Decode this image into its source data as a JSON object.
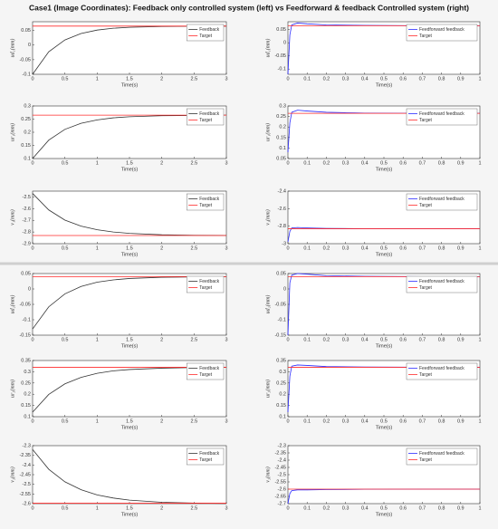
{
  "title": "Case1 (Image Coordinates): Feedback only controlled system (left) vs Feedforward & feedback Controlled system (right)",
  "chart_data": [
    {
      "type": "line",
      "ylabel": "ud₁(mm)",
      "xlabel": "Time(s)",
      "x": [
        0,
        0.25,
        0.5,
        0.75,
        1,
        1.25,
        1.5,
        2,
        2.5,
        3
      ],
      "xlim": [
        0,
        3
      ],
      "xticks": [
        0,
        0.5,
        1,
        1.5,
        2,
        2.5,
        3
      ],
      "ylim": [
        -0.1,
        0.08
      ],
      "yticks": [
        -0.1,
        -0.05,
        0,
        0.05
      ],
      "legend": "upper right",
      "series": [
        {
          "name": "Feedback",
          "color": "#333333",
          "values": [
            -0.1,
            -0.023,
            0.0177,
            0.0397,
            0.0515,
            0.0578,
            0.0611,
            0.0639,
            0.0647,
            0.065
          ]
        },
        {
          "name": "Target",
          "color": "#ff2a2a",
          "values": [
            0.065,
            0.065,
            0.065,
            0.065,
            0.065,
            0.065,
            0.065,
            0.065,
            0.065,
            0.065
          ]
        }
      ]
    },
    {
      "type": "line",
      "ylabel": "ud₁(mm)",
      "xlabel": "Time(s)",
      "x": [
        0,
        0.01,
        0.02,
        0.05,
        0.1,
        0.2,
        0.4,
        0.7,
        1
      ],
      "xlim": [
        0,
        1
      ],
      "xticks": [
        0,
        0.1,
        0.2,
        0.3,
        0.4,
        0.5,
        0.6,
        0.7,
        0.8,
        0.9,
        1
      ],
      "ylim": [
        -0.12,
        0.08
      ],
      "yticks": [
        -0.1,
        -0.05,
        0,
        0.05
      ],
      "legend": "upper right",
      "series": [
        {
          "name": "Feedforward feedback",
          "color": "#2b2bff",
          "values": [
            -0.12,
            0.03,
            0.068,
            0.075,
            0.072,
            0.068,
            0.066,
            0.065,
            0.065
          ]
        },
        {
          "name": "Target",
          "color": "#ff2a2a",
          "values": [
            0.065,
            0.065,
            0.065,
            0.065,
            0.065,
            0.065,
            0.065,
            0.065,
            0.065
          ]
        }
      ]
    },
    {
      "type": "line",
      "ylabel": "ur₁(mm)",
      "xlabel": "Time(s)",
      "x": [
        0,
        0.25,
        0.5,
        0.75,
        1,
        1.25,
        1.5,
        2,
        2.5,
        3
      ],
      "xlim": [
        0,
        3
      ],
      "xticks": [
        0,
        0.5,
        1,
        1.5,
        2,
        2.5,
        3
      ],
      "ylim": [
        0.1,
        0.3
      ],
      "yticks": [
        0.1,
        0.15,
        0.2,
        0.25,
        0.3
      ],
      "legend": "upper right",
      "series": [
        {
          "name": "Feedback",
          "color": "#333333",
          "values": [
            0.1,
            0.17,
            0.211,
            0.234,
            0.247,
            0.255,
            0.259,
            0.263,
            0.264,
            0.265
          ]
        },
        {
          "name": "Target",
          "color": "#ff2a2a",
          "values": [
            0.265,
            0.265,
            0.265,
            0.265,
            0.265,
            0.265,
            0.265,
            0.265,
            0.265,
            0.265
          ]
        }
      ]
    },
    {
      "type": "line",
      "ylabel": "ur₁(mm)",
      "xlabel": "Time(s)",
      "x": [
        0,
        0.01,
        0.02,
        0.05,
        0.1,
        0.2,
        0.4,
        0.7,
        1
      ],
      "xlim": [
        0,
        1
      ],
      "xticks": [
        0,
        0.1,
        0.2,
        0.3,
        0.4,
        0.5,
        0.6,
        0.7,
        0.8,
        0.9,
        1
      ],
      "ylim": [
        0.05,
        0.3
      ],
      "yticks": [
        0.05,
        0.1,
        0.15,
        0.2,
        0.25,
        0.3
      ],
      "legend": "upper right",
      "series": [
        {
          "name": "Feedforward feedback",
          "color": "#2b2bff",
          "values": [
            0.08,
            0.22,
            0.27,
            0.28,
            0.276,
            0.27,
            0.266,
            0.265,
            0.265
          ]
        },
        {
          "name": "Target",
          "color": "#ff2a2a",
          "values": [
            0.265,
            0.265,
            0.265,
            0.265,
            0.265,
            0.265,
            0.265,
            0.265,
            0.265
          ]
        }
      ]
    },
    {
      "type": "line",
      "ylabel": "v₁(mm)",
      "xlabel": "Time(s)",
      "x": [
        0,
        0.25,
        0.5,
        0.75,
        1,
        1.25,
        1.5,
        2,
        2.5,
        3
      ],
      "xlim": [
        0,
        3
      ],
      "xticks": [
        0,
        0.5,
        1,
        1.5,
        2,
        2.5,
        3
      ],
      "ylim": [
        -2.9,
        -2.45
      ],
      "yticks": [
        -2.9,
        -2.8,
        -2.7,
        -2.6,
        -2.5
      ],
      "legend": "upper right",
      "series": [
        {
          "name": "Feedback",
          "color": "#333333",
          "values": [
            -2.47,
            -2.611,
            -2.698,
            -2.75,
            -2.781,
            -2.8,
            -2.812,
            -2.824,
            -2.828,
            -2.829
          ]
        },
        {
          "name": "Target",
          "color": "#ff2a2a",
          "values": [
            -2.83,
            -2.83,
            -2.83,
            -2.83,
            -2.83,
            -2.83,
            -2.83,
            -2.83,
            -2.83,
            -2.83
          ]
        }
      ]
    },
    {
      "type": "line",
      "ylabel": "v₁(mm)",
      "xlabel": "Time(s)",
      "x": [
        0,
        0.01,
        0.02,
        0.05,
        0.1,
        0.2,
        0.4,
        0.7,
        1
      ],
      "xlim": [
        0,
        1
      ],
      "xticks": [
        0,
        0.1,
        0.2,
        0.3,
        0.4,
        0.5,
        0.6,
        0.7,
        0.8,
        0.9,
        1
      ],
      "ylim": [
        -3,
        -2.4
      ],
      "yticks": [
        -3,
        -2.8,
        -2.6,
        -2.4
      ],
      "legend": "upper right",
      "series": [
        {
          "name": "Feedforward feedback",
          "color": "#2b2bff",
          "values": [
            -2.98,
            -2.86,
            -2.82,
            -2.815,
            -2.82,
            -2.826,
            -2.829,
            -2.83,
            -2.83
          ]
        },
        {
          "name": "Target",
          "color": "#ff2a2a",
          "values": [
            -2.83,
            -2.83,
            -2.83,
            -2.83,
            -2.83,
            -2.83,
            -2.83,
            -2.83,
            -2.83
          ]
        }
      ]
    },
    {
      "type": "line",
      "ylabel": "ud₂(mm)",
      "xlabel": "Time(s)",
      "x": [
        0,
        0.25,
        0.5,
        0.75,
        1,
        1.25,
        1.5,
        2,
        2.5,
        3
      ],
      "xlim": [
        0,
        3
      ],
      "xticks": [
        0,
        0.5,
        1,
        1.5,
        2,
        2.5,
        3
      ],
      "ylim": [
        -0.15,
        0.05
      ],
      "yticks": [
        -0.15,
        -0.1,
        -0.05,
        0,
        0.05
      ],
      "legend": "upper right",
      "series": [
        {
          "name": "Feedback",
          "color": "#333333",
          "values": [
            -0.13,
            -0.058,
            -0.016,
            0.008,
            0.022,
            0.0295,
            0.034,
            0.038,
            0.039,
            0.04
          ]
        },
        {
          "name": "Target",
          "color": "#ff2a2a",
          "values": [
            0.04,
            0.04,
            0.04,
            0.04,
            0.04,
            0.04,
            0.04,
            0.04,
            0.04,
            0.04
          ]
        }
      ]
    },
    {
      "type": "line",
      "ylabel": "ud₂(mm)",
      "xlabel": "Time(s)",
      "x": [
        0,
        0.01,
        0.02,
        0.05,
        0.1,
        0.2,
        0.4,
        0.7,
        1
      ],
      "xlim": [
        0,
        1
      ],
      "xticks": [
        0,
        0.1,
        0.2,
        0.3,
        0.4,
        0.5,
        0.6,
        0.7,
        0.8,
        0.9,
        1
      ],
      "ylim": [
        -0.15,
        0.05
      ],
      "yticks": [
        -0.15,
        -0.1,
        -0.05,
        0,
        0.05
      ],
      "legend": "upper right",
      "series": [
        {
          "name": "Feedforward feedback",
          "color": "#2b2bff",
          "values": [
            -0.15,
            0.02,
            0.045,
            0.05,
            0.048,
            0.043,
            0.041,
            0.04,
            0.04
          ]
        },
        {
          "name": "Target",
          "color": "#ff2a2a",
          "values": [
            0.04,
            0.04,
            0.04,
            0.04,
            0.04,
            0.04,
            0.04,
            0.04,
            0.04
          ]
        }
      ]
    },
    {
      "type": "line",
      "ylabel": "ur₂(mm)",
      "xlabel": "Time(s)",
      "x": [
        0,
        0.25,
        0.5,
        0.75,
        1,
        1.25,
        1.5,
        2,
        2.5,
        3
      ],
      "xlim": [
        0,
        3
      ],
      "xticks": [
        0,
        0.5,
        1,
        1.5,
        2,
        2.5,
        3
      ],
      "ylim": [
        0.1,
        0.35
      ],
      "yticks": [
        0.1,
        0.15,
        0.2,
        0.25,
        0.3,
        0.35
      ],
      "legend": "upper right",
      "series": [
        {
          "name": "Feedback",
          "color": "#333333",
          "values": [
            0.12,
            0.199,
            0.246,
            0.275,
            0.293,
            0.304,
            0.31,
            0.316,
            0.319,
            0.32
          ]
        },
        {
          "name": "Target",
          "color": "#ff2a2a",
          "values": [
            0.32,
            0.32,
            0.32,
            0.32,
            0.32,
            0.32,
            0.32,
            0.32,
            0.32,
            0.32
          ]
        }
      ]
    },
    {
      "type": "line",
      "ylabel": "ur₂(mm)",
      "xlabel": "Time(s)",
      "x": [
        0,
        0.01,
        0.02,
        0.05,
        0.1,
        0.2,
        0.4,
        0.7,
        1
      ],
      "xlim": [
        0,
        1
      ],
      "xticks": [
        0,
        0.1,
        0.2,
        0.3,
        0.4,
        0.5,
        0.6,
        0.7,
        0.8,
        0.9,
        1
      ],
      "ylim": [
        0.1,
        0.35
      ],
      "yticks": [
        0.1,
        0.15,
        0.2,
        0.25,
        0.3,
        0.35
      ],
      "legend": "upper right",
      "series": [
        {
          "name": "Feedforward feedback",
          "color": "#2b2bff",
          "values": [
            0.12,
            0.28,
            0.325,
            0.33,
            0.328,
            0.323,
            0.321,
            0.32,
            0.32
          ]
        },
        {
          "name": "Target",
          "color": "#ff2a2a",
          "values": [
            0.32,
            0.32,
            0.32,
            0.32,
            0.32,
            0.32,
            0.32,
            0.32,
            0.32
          ]
        }
      ]
    },
    {
      "type": "line",
      "ylabel": "v₂(mm)",
      "xlabel": "Time(s)",
      "x": [
        0,
        0.25,
        0.5,
        0.75,
        1,
        1.25,
        1.5,
        2,
        2.5,
        3
      ],
      "xlim": [
        0,
        3
      ],
      "xticks": [
        0,
        0.5,
        1,
        1.5,
        2,
        2.5,
        3
      ],
      "ylim": [
        -2.6,
        -2.3
      ],
      "yticks": [
        -2.6,
        -2.55,
        -2.5,
        -2.45,
        -2.4,
        -2.35,
        -2.3
      ],
      "legend": "upper right",
      "series": [
        {
          "name": "Feedback",
          "color": "#333333",
          "values": [
            -2.32,
            -2.422,
            -2.487,
            -2.528,
            -2.555,
            -2.571,
            -2.582,
            -2.593,
            -2.597,
            -2.599
          ]
        },
        {
          "name": "Target",
          "color": "#ff2a2a",
          "values": [
            -2.598,
            -2.598,
            -2.598,
            -2.598,
            -2.598,
            -2.598,
            -2.598,
            -2.598,
            -2.598,
            -2.598
          ]
        }
      ]
    },
    {
      "type": "line",
      "ylabel": "v₂(mm)",
      "xlabel": "Time(s)",
      "x": [
        0,
        0.01,
        0.02,
        0.05,
        0.1,
        0.2,
        0.4,
        0.7,
        1
      ],
      "xlim": [
        0,
        1
      ],
      "xticks": [
        0,
        0.1,
        0.2,
        0.3,
        0.4,
        0.5,
        0.6,
        0.7,
        0.8,
        0.9,
        1
      ],
      "ylim": [
        -2.7,
        -2.3
      ],
      "yticks": [
        -2.7,
        -2.65,
        -2.6,
        -2.55,
        -2.5,
        -2.45,
        -2.4,
        -2.35,
        -2.3
      ],
      "legend": "upper right",
      "series": [
        {
          "name": "Feedforward feedback",
          "color": "#2b2bff",
          "values": [
            -2.7,
            -2.63,
            -2.61,
            -2.605,
            -2.605,
            -2.603,
            -2.601,
            -2.6,
            -2.6
          ]
        },
        {
          "name": "Target",
          "color": "#ff2a2a",
          "values": [
            -2.6,
            -2.6,
            -2.6,
            -2.6,
            -2.6,
            -2.6,
            -2.6,
            -2.6,
            -2.6
          ]
        }
      ]
    }
  ]
}
